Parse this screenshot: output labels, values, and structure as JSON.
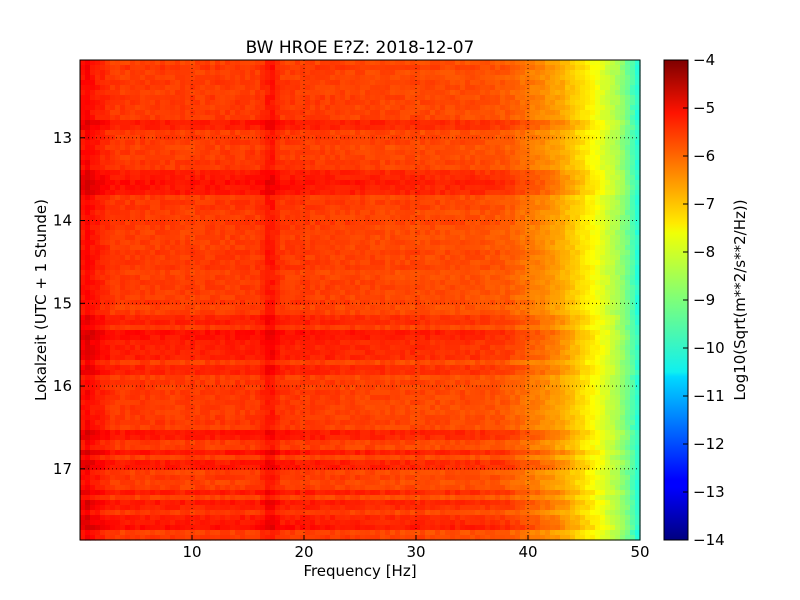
{
  "chart_data": {
    "type": "heatmap",
    "title": "BW HROE E?Z: 2018-12-07",
    "xlabel": "Frequency [Hz]",
    "ylabel": "Lokalzeit (UTC + 1 Stunde)",
    "xlim": [
      0,
      50
    ],
    "ylim": [
      12.06,
      17.86
    ],
    "y_inverted": true,
    "grid": true,
    "grid_style": "dotted",
    "x_ticks": [
      10,
      20,
      30,
      40,
      50
    ],
    "y_ticks": [
      13,
      14,
      15,
      16,
      17
    ],
    "colorbar": {
      "label": "Log10(Sqrt(m**2/s**2/Hz))",
      "colormap": "jet",
      "range": [
        -14,
        -4
      ],
      "ticks": [
        -4,
        -5,
        -6,
        -7,
        -8,
        -9,
        -10,
        -11,
        -12,
        -13,
        -14
      ]
    },
    "frequency_profile": {
      "freq_hz": [
        0,
        0.5,
        1,
        3,
        10,
        16,
        17,
        18,
        25,
        30,
        35,
        38,
        40,
        42,
        43,
        44,
        45,
        46,
        47,
        48,
        49,
        50
      ],
      "log_value": [
        -5.6,
        -5.2,
        -5.4,
        -5.8,
        -5.85,
        -5.8,
        -5.4,
        -5.8,
        -5.9,
        -5.95,
        -6.0,
        -6.1,
        -6.4,
        -6.7,
        -6.9,
        -7.2,
        -7.5,
        -7.8,
        -8.2,
        -8.6,
        -9.2,
        -10.0
      ]
    },
    "time_bands": [
      {
        "time_h": 12.85,
        "delta": 0.3
      },
      {
        "time_h": 13.45,
        "delta": 0.35
      },
      {
        "time_h": 13.55,
        "delta": 0.4
      },
      {
        "time_h": 13.62,
        "delta": 0.35
      },
      {
        "time_h": 15.2,
        "delta": 0.25
      },
      {
        "time_h": 15.38,
        "delta": 0.45
      },
      {
        "time_h": 15.5,
        "delta": 0.3
      },
      {
        "time_h": 15.62,
        "delta": 0.3
      },
      {
        "time_h": 15.8,
        "delta": 0.25
      },
      {
        "time_h": 16.6,
        "delta": 0.35
      },
      {
        "time_h": 16.8,
        "delta": 0.4
      },
      {
        "time_h": 16.95,
        "delta": 0.3
      },
      {
        "time_h": 17.3,
        "delta": 0.35
      },
      {
        "time_h": 17.45,
        "delta": 0.3
      },
      {
        "time_h": 17.62,
        "delta": 0.35
      },
      {
        "time_h": 17.72,
        "delta": 0.45
      }
    ]
  }
}
